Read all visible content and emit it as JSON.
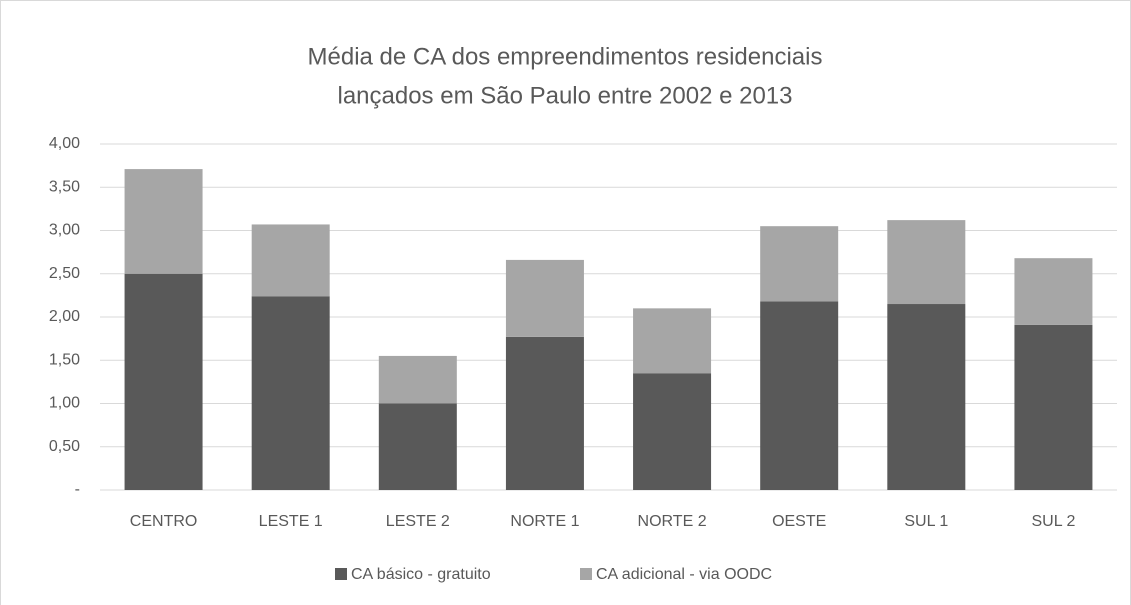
{
  "chart_data": {
    "type": "stacked_bar",
    "title": [
      "Média de CA dos empreendimentos residenciais",
      "lançados em São Paulo entre 2002 e 2013"
    ],
    "categories": [
      "CENTRO",
      "LESTE 1",
      "LESTE 2",
      "NORTE 1",
      "NORTE 2",
      "OESTE",
      "SUL 1",
      "SUL 2"
    ],
    "series": [
      {
        "name": "CA básico - gratuito",
        "color": "#595959",
        "values": [
          2.5,
          2.24,
          1.0,
          1.77,
          1.35,
          2.18,
          2.15,
          1.91
        ]
      },
      {
        "name": "CA adicional - via OODC",
        "color": "#a6a6a6",
        "values": [
          1.21,
          0.83,
          0.55,
          0.89,
          0.75,
          0.87,
          0.97,
          0.77
        ]
      }
    ],
    "ylim": [
      0,
      4
    ],
    "yticks": [
      {
        "value": 0,
        "label": "-"
      },
      {
        "value": 0.5,
        "label": "0,50"
      },
      {
        "value": 1,
        "label": "1,00"
      },
      {
        "value": 1.5,
        "label": "1,50"
      },
      {
        "value": 2,
        "label": "2,00"
      },
      {
        "value": 2.5,
        "label": "2,50"
      },
      {
        "value": 3,
        "label": "3,00"
      },
      {
        "value": 3.5,
        "label": "3,50"
      },
      {
        "value": 4,
        "label": "4,00"
      }
    ],
    "grid": true,
    "legend": "bottom"
  }
}
